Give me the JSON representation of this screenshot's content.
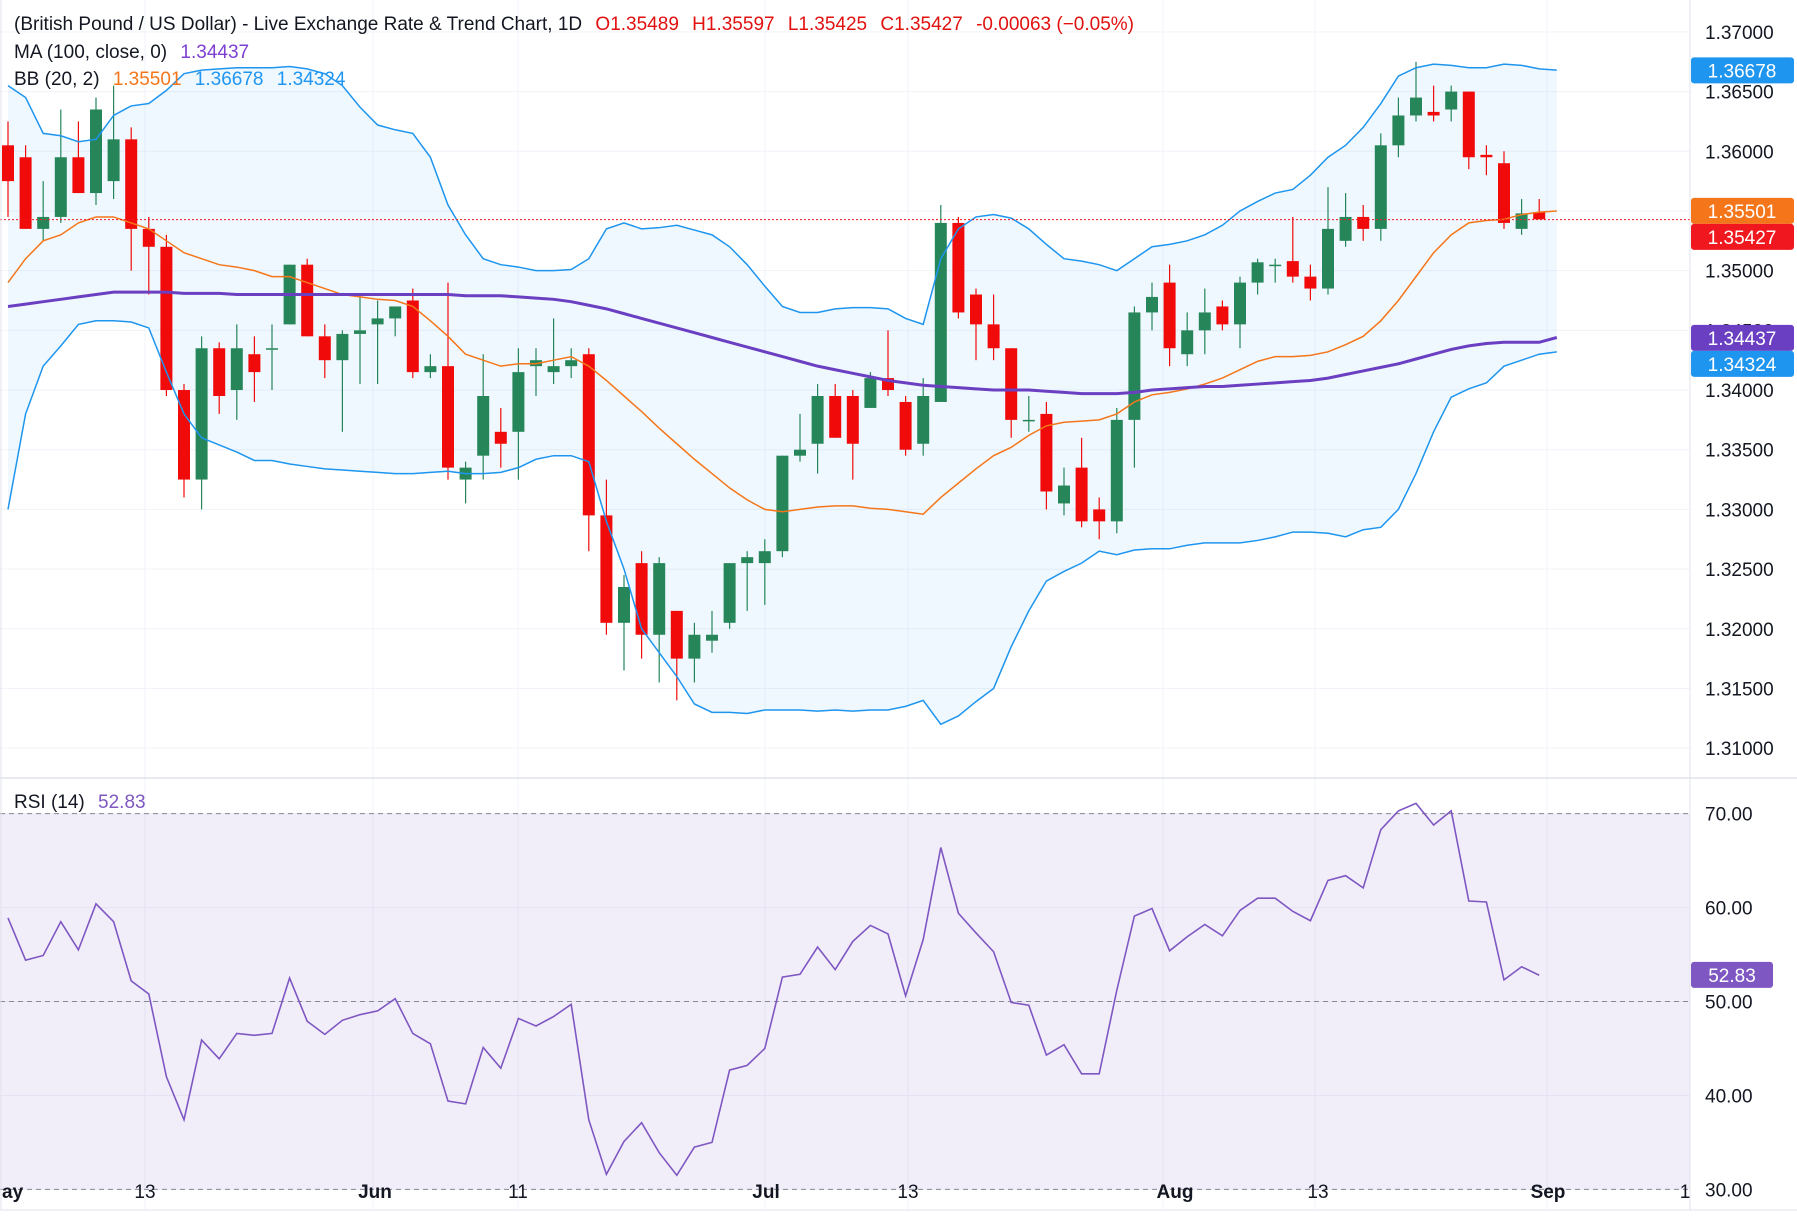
{
  "header": {
    "symbol_title": "(British Pound / US Dollar) - Live Exchange Rate & Trend Chart, 1D",
    "open": "O1.35489",
    "high": "H1.35597",
    "low": "L1.35425",
    "close": "C1.35427",
    "change": "-0.00063 (−0.05%)"
  },
  "indicators": {
    "ma_label": "MA (100, close, 0)",
    "ma_value": "1.34437",
    "bb_label": "BB (20, 2)",
    "bb_basis": "1.35501",
    "bb_upper": "1.36678",
    "bb_lower": "1.34324",
    "rsi_label": "RSI (14)",
    "rsi_value": "52.83"
  },
  "colors": {
    "bull": "#26865a",
    "bear": "#f00a0a",
    "ma": "#6b3fc2",
    "bb_basis": "#f5761a",
    "bb_band": "#1e95ef",
    "rsi": "#7e57c2",
    "last_price": "#f0181e"
  },
  "chart_data": [
    {
      "type": "candlestick",
      "ylim": [
        1.3075,
        1.3715
      ],
      "y_ticks": [
        "1.37000",
        "1.36500",
        "1.36000",
        "1.35500",
        "1.35000",
        "1.34500",
        "1.34000",
        "1.33500",
        "1.33000",
        "1.32500",
        "1.32000",
        "1.31500",
        "1.31000"
      ],
      "x_tick_labels": [
        "ay",
        "13",
        "Jun",
        "11",
        "Jul",
        "13",
        "Aug",
        "13",
        "Sep",
        "1"
      ],
      "price_labels": [
        {
          "value": 1.36678,
          "text": "1.36678",
          "color": "#1e95ef"
        },
        {
          "value": 1.35501,
          "text": "1.35501",
          "color": "#f5761a"
        },
        {
          "value": 1.35427,
          "text": "1.35427",
          "color": "#f0181e"
        },
        {
          "value": 1.34437,
          "text": "1.34437",
          "color": "#6b3fc2"
        },
        {
          "value": 1.34324,
          "text": "1.34324",
          "color": "#1e95ef"
        }
      ],
      "last_price": 1.35427,
      "candles": [
        {
          "o": 1.3605,
          "h": 1.3625,
          "l": 1.3545,
          "c": 1.3575
        },
        {
          "o": 1.3595,
          "h": 1.3605,
          "l": 1.3535,
          "c": 1.3535
        },
        {
          "o": 1.3535,
          "h": 1.3575,
          "l": 1.3525,
          "c": 1.3545
        },
        {
          "o": 1.3545,
          "h": 1.3635,
          "l": 1.354,
          "c": 1.3595
        },
        {
          "o": 1.3595,
          "h": 1.3625,
          "l": 1.3565,
          "c": 1.3565
        },
        {
          "o": 1.3565,
          "h": 1.3645,
          "l": 1.3555,
          "c": 1.3635
        },
        {
          "o": 1.3575,
          "h": 1.3655,
          "l": 1.356,
          "c": 1.361
        },
        {
          "o": 1.361,
          "h": 1.362,
          "l": 1.35,
          "c": 1.3535
        },
        {
          "o": 1.3535,
          "h": 1.3545,
          "l": 1.348,
          "c": 1.352
        },
        {
          "o": 1.352,
          "h": 1.353,
          "l": 1.3395,
          "c": 1.34
        },
        {
          "o": 1.34,
          "h": 1.3405,
          "l": 1.331,
          "c": 1.3325
        },
        {
          "o": 1.3325,
          "h": 1.3445,
          "l": 1.33,
          "c": 1.3435
        },
        {
          "o": 1.3435,
          "h": 1.344,
          "l": 1.338,
          "c": 1.3395
        },
        {
          "o": 1.34,
          "h": 1.3455,
          "l": 1.3375,
          "c": 1.3435
        },
        {
          "o": 1.343,
          "h": 1.3445,
          "l": 1.339,
          "c": 1.3415
        },
        {
          "o": 1.3435,
          "h": 1.3455,
          "l": 1.34,
          "c": 1.3435
        },
        {
          "o": 1.3455,
          "h": 1.3505,
          "l": 1.3455,
          "c": 1.3505
        },
        {
          "o": 1.3505,
          "h": 1.351,
          "l": 1.3445,
          "c": 1.3445
        },
        {
          "o": 1.3445,
          "h": 1.3455,
          "l": 1.341,
          "c": 1.3425
        },
        {
          "o": 1.3425,
          "h": 1.345,
          "l": 1.3365,
          "c": 1.3447
        },
        {
          "o": 1.3447,
          "h": 1.348,
          "l": 1.3405,
          "c": 1.345
        },
        {
          "o": 1.3455,
          "h": 1.3475,
          "l": 1.3405,
          "c": 1.346
        },
        {
          "o": 1.346,
          "h": 1.347,
          "l": 1.3445,
          "c": 1.347
        },
        {
          "o": 1.3475,
          "h": 1.3485,
          "l": 1.341,
          "c": 1.3415
        },
        {
          "o": 1.3415,
          "h": 1.343,
          "l": 1.341,
          "c": 1.342
        },
        {
          "o": 1.342,
          "h": 1.349,
          "l": 1.3325,
          "c": 1.3335
        },
        {
          "o": 1.3325,
          "h": 1.334,
          "l": 1.3305,
          "c": 1.3335
        },
        {
          "o": 1.3345,
          "h": 1.343,
          "l": 1.3325,
          "c": 1.3395
        },
        {
          "o": 1.3365,
          "h": 1.3385,
          "l": 1.3335,
          "c": 1.3355
        },
        {
          "o": 1.3365,
          "h": 1.3435,
          "l": 1.3325,
          "c": 1.3415
        },
        {
          "o": 1.342,
          "h": 1.3435,
          "l": 1.3395,
          "c": 1.3425
        },
        {
          "o": 1.3415,
          "h": 1.346,
          "l": 1.3405,
          "c": 1.342
        },
        {
          "o": 1.342,
          "h": 1.3435,
          "l": 1.341,
          "c": 1.3425
        },
        {
          "o": 1.343,
          "h": 1.3435,
          "l": 1.3265,
          "c": 1.3295
        },
        {
          "o": 1.3295,
          "h": 1.3325,
          "l": 1.3195,
          "c": 1.3205
        },
        {
          "o": 1.3205,
          "h": 1.3245,
          "l": 1.3165,
          "c": 1.3235
        },
        {
          "o": 1.3255,
          "h": 1.3265,
          "l": 1.3175,
          "c": 1.3195
        },
        {
          "o": 1.3195,
          "h": 1.326,
          "l": 1.3155,
          "c": 1.3255
        },
        {
          "o": 1.3215,
          "h": 1.3215,
          "l": 1.314,
          "c": 1.3175
        },
        {
          "o": 1.3175,
          "h": 1.3205,
          "l": 1.3155,
          "c": 1.3195
        },
        {
          "o": 1.319,
          "h": 1.3215,
          "l": 1.318,
          "c": 1.3195
        },
        {
          "o": 1.3205,
          "h": 1.3255,
          "l": 1.32,
          "c": 1.3255
        },
        {
          "o": 1.3255,
          "h": 1.3265,
          "l": 1.3215,
          "c": 1.326
        },
        {
          "o": 1.3255,
          "h": 1.3275,
          "l": 1.322,
          "c": 1.3265
        },
        {
          "o": 1.3265,
          "h": 1.3345,
          "l": 1.326,
          "c": 1.3345
        },
        {
          "o": 1.3345,
          "h": 1.338,
          "l": 1.334,
          "c": 1.335
        },
        {
          "o": 1.3355,
          "h": 1.3405,
          "l": 1.333,
          "c": 1.3395
        },
        {
          "o": 1.3395,
          "h": 1.3405,
          "l": 1.336,
          "c": 1.336
        },
        {
          "o": 1.3395,
          "h": 1.34,
          "l": 1.3325,
          "c": 1.3355
        },
        {
          "o": 1.3385,
          "h": 1.3415,
          "l": 1.3385,
          "c": 1.341
        },
        {
          "o": 1.341,
          "h": 1.345,
          "l": 1.3395,
          "c": 1.34
        },
        {
          "o": 1.339,
          "h": 1.3395,
          "l": 1.3345,
          "c": 1.335
        },
        {
          "o": 1.3355,
          "h": 1.341,
          "l": 1.3345,
          "c": 1.3395
        },
        {
          "o": 1.339,
          "h": 1.3555,
          "l": 1.339,
          "c": 1.354
        },
        {
          "o": 1.354,
          "h": 1.3545,
          "l": 1.346,
          "c": 1.3465
        },
        {
          "o": 1.348,
          "h": 1.3485,
          "l": 1.3425,
          "c": 1.3455
        },
        {
          "o": 1.3455,
          "h": 1.348,
          "l": 1.3425,
          "c": 1.3435
        },
        {
          "o": 1.3435,
          "h": 1.3435,
          "l": 1.336,
          "c": 1.3375
        },
        {
          "o": 1.3375,
          "h": 1.3395,
          "l": 1.3365,
          "c": 1.3375
        },
        {
          "o": 1.338,
          "h": 1.339,
          "l": 1.33,
          "c": 1.3315
        },
        {
          "o": 1.3305,
          "h": 1.3335,
          "l": 1.3295,
          "c": 1.332
        },
        {
          "o": 1.3335,
          "h": 1.336,
          "l": 1.3285,
          "c": 1.329
        },
        {
          "o": 1.33,
          "h": 1.331,
          "l": 1.3275,
          "c": 1.329
        },
        {
          "o": 1.329,
          "h": 1.3385,
          "l": 1.328,
          "c": 1.3375
        },
        {
          "o": 1.3375,
          "h": 1.347,
          "l": 1.3335,
          "c": 1.3465
        },
        {
          "o": 1.3465,
          "h": 1.349,
          "l": 1.345,
          "c": 1.3478
        },
        {
          "o": 1.349,
          "h": 1.3505,
          "l": 1.342,
          "c": 1.3435
        },
        {
          "o": 1.343,
          "h": 1.3465,
          "l": 1.342,
          "c": 1.345
        },
        {
          "o": 1.345,
          "h": 1.3485,
          "l": 1.343,
          "c": 1.3465
        },
        {
          "o": 1.347,
          "h": 1.3475,
          "l": 1.345,
          "c": 1.3455
        },
        {
          "o": 1.3455,
          "h": 1.3495,
          "l": 1.3435,
          "c": 1.349
        },
        {
          "o": 1.349,
          "h": 1.351,
          "l": 1.348,
          "c": 1.3507
        },
        {
          "o": 1.3505,
          "h": 1.351,
          "l": 1.349,
          "c": 1.3505
        },
        {
          "o": 1.3508,
          "h": 1.3545,
          "l": 1.349,
          "c": 1.3495
        },
        {
          "o": 1.3495,
          "h": 1.3505,
          "l": 1.3475,
          "c": 1.3485
        },
        {
          "o": 1.3485,
          "h": 1.357,
          "l": 1.348,
          "c": 1.3535
        },
        {
          "o": 1.3525,
          "h": 1.3565,
          "l": 1.352,
          "c": 1.3545
        },
        {
          "o": 1.3545,
          "h": 1.3555,
          "l": 1.3525,
          "c": 1.3535
        },
        {
          "o": 1.3535,
          "h": 1.3615,
          "l": 1.3525,
          "c": 1.3605
        },
        {
          "o": 1.3605,
          "h": 1.3645,
          "l": 1.3595,
          "c": 1.363
        },
        {
          "o": 1.363,
          "h": 1.3675,
          "l": 1.3625,
          "c": 1.3645
        },
        {
          "o": 1.3633,
          "h": 1.3655,
          "l": 1.3625,
          "c": 1.363
        },
        {
          "o": 1.3635,
          "h": 1.3655,
          "l": 1.3625,
          "c": 1.365
        },
        {
          "o": 1.365,
          "h": 1.365,
          "l": 1.3585,
          "c": 1.3595
        },
        {
          "o": 1.3597,
          "h": 1.3605,
          "l": 1.358,
          "c": 1.3595
        },
        {
          "o": 1.359,
          "h": 1.36,
          "l": 1.3535,
          "c": 1.354
        },
        {
          "o": 1.3535,
          "h": 1.356,
          "l": 1.353,
          "c": 1.3548
        },
        {
          "o": 1.3549,
          "h": 1.356,
          "l": 1.3543,
          "c": 1.3543
        }
      ],
      "ma100": [
        1.347,
        1.3472,
        1.3474,
        1.3476,
        1.3478,
        1.348,
        1.3482,
        1.3482,
        1.3482,
        1.3482,
        1.3481,
        1.3481,
        1.3481,
        1.348,
        1.348,
        1.348,
        1.348,
        1.348,
        1.348,
        1.348,
        1.348,
        1.348,
        1.348,
        1.348,
        1.348,
        1.348,
        1.3479,
        1.3479,
        1.3479,
        1.3478,
        1.3477,
        1.3476,
        1.3474,
        1.3471,
        1.3468,
        1.3464,
        1.346,
        1.3456,
        1.3452,
        1.3448,
        1.3444,
        1.344,
        1.3436,
        1.3432,
        1.3428,
        1.3424,
        1.342,
        1.3417,
        1.3414,
        1.3411,
        1.3408,
        1.3406,
        1.3404,
        1.3403,
        1.3402,
        1.3401,
        1.34,
        1.34,
        1.34,
        1.3399,
        1.3398,
        1.3397,
        1.3397,
        1.3397,
        1.3398,
        1.34,
        1.3401,
        1.3402,
        1.3403,
        1.3403,
        1.3404,
        1.3405,
        1.3406,
        1.3407,
        1.3408,
        1.341,
        1.3413,
        1.3416,
        1.3419,
        1.3422,
        1.3426,
        1.343,
        1.3434,
        1.3437,
        1.3439,
        1.344,
        1.344,
        1.344,
        1.3444
      ],
      "bb_basis": [
        1.349,
        1.351,
        1.3525,
        1.353,
        1.354,
        1.3545,
        1.3545,
        1.354,
        1.3535,
        1.3525,
        1.3515,
        1.351,
        1.3505,
        1.3503,
        1.35,
        1.3495,
        1.3495,
        1.349,
        1.3485,
        1.348,
        1.3478,
        1.3476,
        1.3475,
        1.347,
        1.3458,
        1.3445,
        1.343,
        1.3425,
        1.342,
        1.3422,
        1.3422,
        1.3425,
        1.3428,
        1.342,
        1.3408,
        1.3395,
        1.3382,
        1.3368,
        1.3355,
        1.3342,
        1.333,
        1.3318,
        1.3308,
        1.33,
        1.3298,
        1.33,
        1.3302,
        1.3303,
        1.3303,
        1.3301,
        1.33,
        1.3298,
        1.3296,
        1.331,
        1.3322,
        1.3334,
        1.3345,
        1.3352,
        1.3362,
        1.337,
        1.3373,
        1.3374,
        1.3375,
        1.338,
        1.339,
        1.3396,
        1.3398,
        1.3401,
        1.3405,
        1.341,
        1.3417,
        1.3424,
        1.3428,
        1.3428,
        1.3429,
        1.3432,
        1.3438,
        1.3445,
        1.3458,
        1.3475,
        1.3495,
        1.3515,
        1.353,
        1.354,
        1.3542,
        1.3543,
        1.3547,
        1.3549,
        1.355
      ],
      "bb_upper": [
        1.3655,
        1.3645,
        1.3615,
        1.3613,
        1.3608,
        1.361,
        1.363,
        1.3638,
        1.364,
        1.3651,
        1.3665,
        1.3668,
        1.3669,
        1.367,
        1.367,
        1.367,
        1.3671,
        1.3669,
        1.3665,
        1.3655,
        1.3637,
        1.3622,
        1.3618,
        1.3615,
        1.3595,
        1.3555,
        1.353,
        1.351,
        1.3505,
        1.3503,
        1.35,
        1.35,
        1.3501,
        1.351,
        1.3535,
        1.354,
        1.3535,
        1.3536,
        1.3538,
        1.3534,
        1.353,
        1.352,
        1.3505,
        1.3487,
        1.347,
        1.3465,
        1.3465,
        1.3468,
        1.3469,
        1.3469,
        1.3468,
        1.346,
        1.3455,
        1.351,
        1.3535,
        1.3545,
        1.3547,
        1.3544,
        1.3535,
        1.3522,
        1.351,
        1.3508,
        1.3505,
        1.35,
        1.351,
        1.352,
        1.3522,
        1.3525,
        1.353,
        1.3538,
        1.355,
        1.3558,
        1.3565,
        1.3568,
        1.358,
        1.3595,
        1.3605,
        1.362,
        1.364,
        1.3663,
        1.367,
        1.3673,
        1.3672,
        1.367,
        1.367,
        1.3673,
        1.3672,
        1.3669,
        1.3668
      ],
      "bb_lower": [
        1.33,
        1.338,
        1.342,
        1.3437,
        1.3455,
        1.3458,
        1.3458,
        1.3457,
        1.3452,
        1.3415,
        1.338,
        1.336,
        1.3354,
        1.3348,
        1.3341,
        1.3341,
        1.3338,
        1.3336,
        1.3334,
        1.3333,
        1.3332,
        1.3331,
        1.333,
        1.333,
        1.3331,
        1.3332,
        1.333,
        1.333,
        1.3331,
        1.3335,
        1.3342,
        1.3345,
        1.3345,
        1.334,
        1.329,
        1.325,
        1.32,
        1.318,
        1.316,
        1.3137,
        1.313,
        1.313,
        1.3129,
        1.3132,
        1.3132,
        1.3132,
        1.3131,
        1.3132,
        1.3131,
        1.3132,
        1.3132,
        1.3135,
        1.314,
        1.312,
        1.3127,
        1.3139,
        1.315,
        1.3185,
        1.3215,
        1.324,
        1.3248,
        1.3255,
        1.3265,
        1.3262,
        1.3266,
        1.3267,
        1.3267,
        1.327,
        1.3272,
        1.3272,
        1.3272,
        1.3274,
        1.3277,
        1.3281,
        1.3281,
        1.328,
        1.3277,
        1.3283,
        1.3285,
        1.33,
        1.333,
        1.3365,
        1.3394,
        1.3401,
        1.3406,
        1.342,
        1.3425,
        1.343,
        1.3432
      ]
    },
    {
      "type": "line",
      "title": "RSI (14)",
      "ylim": [
        27.8,
        73.8
      ],
      "y_ticks": [
        "70.00",
        "60.00",
        "50.00",
        "40.00",
        "30.00"
      ],
      "levels": [
        70,
        50,
        30
      ],
      "current": 52.83,
      "values": [
        58.9,
        54.4,
        54.9,
        58.5,
        55.5,
        60.4,
        58.5,
        52.2,
        50.8,
        42.0,
        37.4,
        45.9,
        43.9,
        46.6,
        46.4,
        46.6,
        52.5,
        47.9,
        46.5,
        48.0,
        48.6,
        49.0,
        50.3,
        46.6,
        45.5,
        39.4,
        39.1,
        45.1,
        42.9,
        48.2,
        47.4,
        48.4,
        49.7,
        37.4,
        31.6,
        35.1,
        37.1,
        33.9,
        31.5,
        34.5,
        35.0,
        42.7,
        43.2,
        45.0,
        52.6,
        52.9,
        55.8,
        53.4,
        56.4,
        58.1,
        57.2,
        50.6,
        56.6,
        66.4,
        59.4,
        57.3,
        55.3,
        49.9,
        49.6,
        44.3,
        45.4,
        42.3,
        42.3,
        51.2,
        59.1,
        59.9,
        55.4,
        56.9,
        58.2,
        57.0,
        59.7,
        61.0,
        61.0,
        59.6,
        58.6,
        62.9,
        63.4,
        62.1,
        68.3,
        70.3,
        71.1,
        68.8,
        70.3,
        60.7,
        60.6,
        52.3,
        53.7,
        52.8
      ]
    }
  ]
}
